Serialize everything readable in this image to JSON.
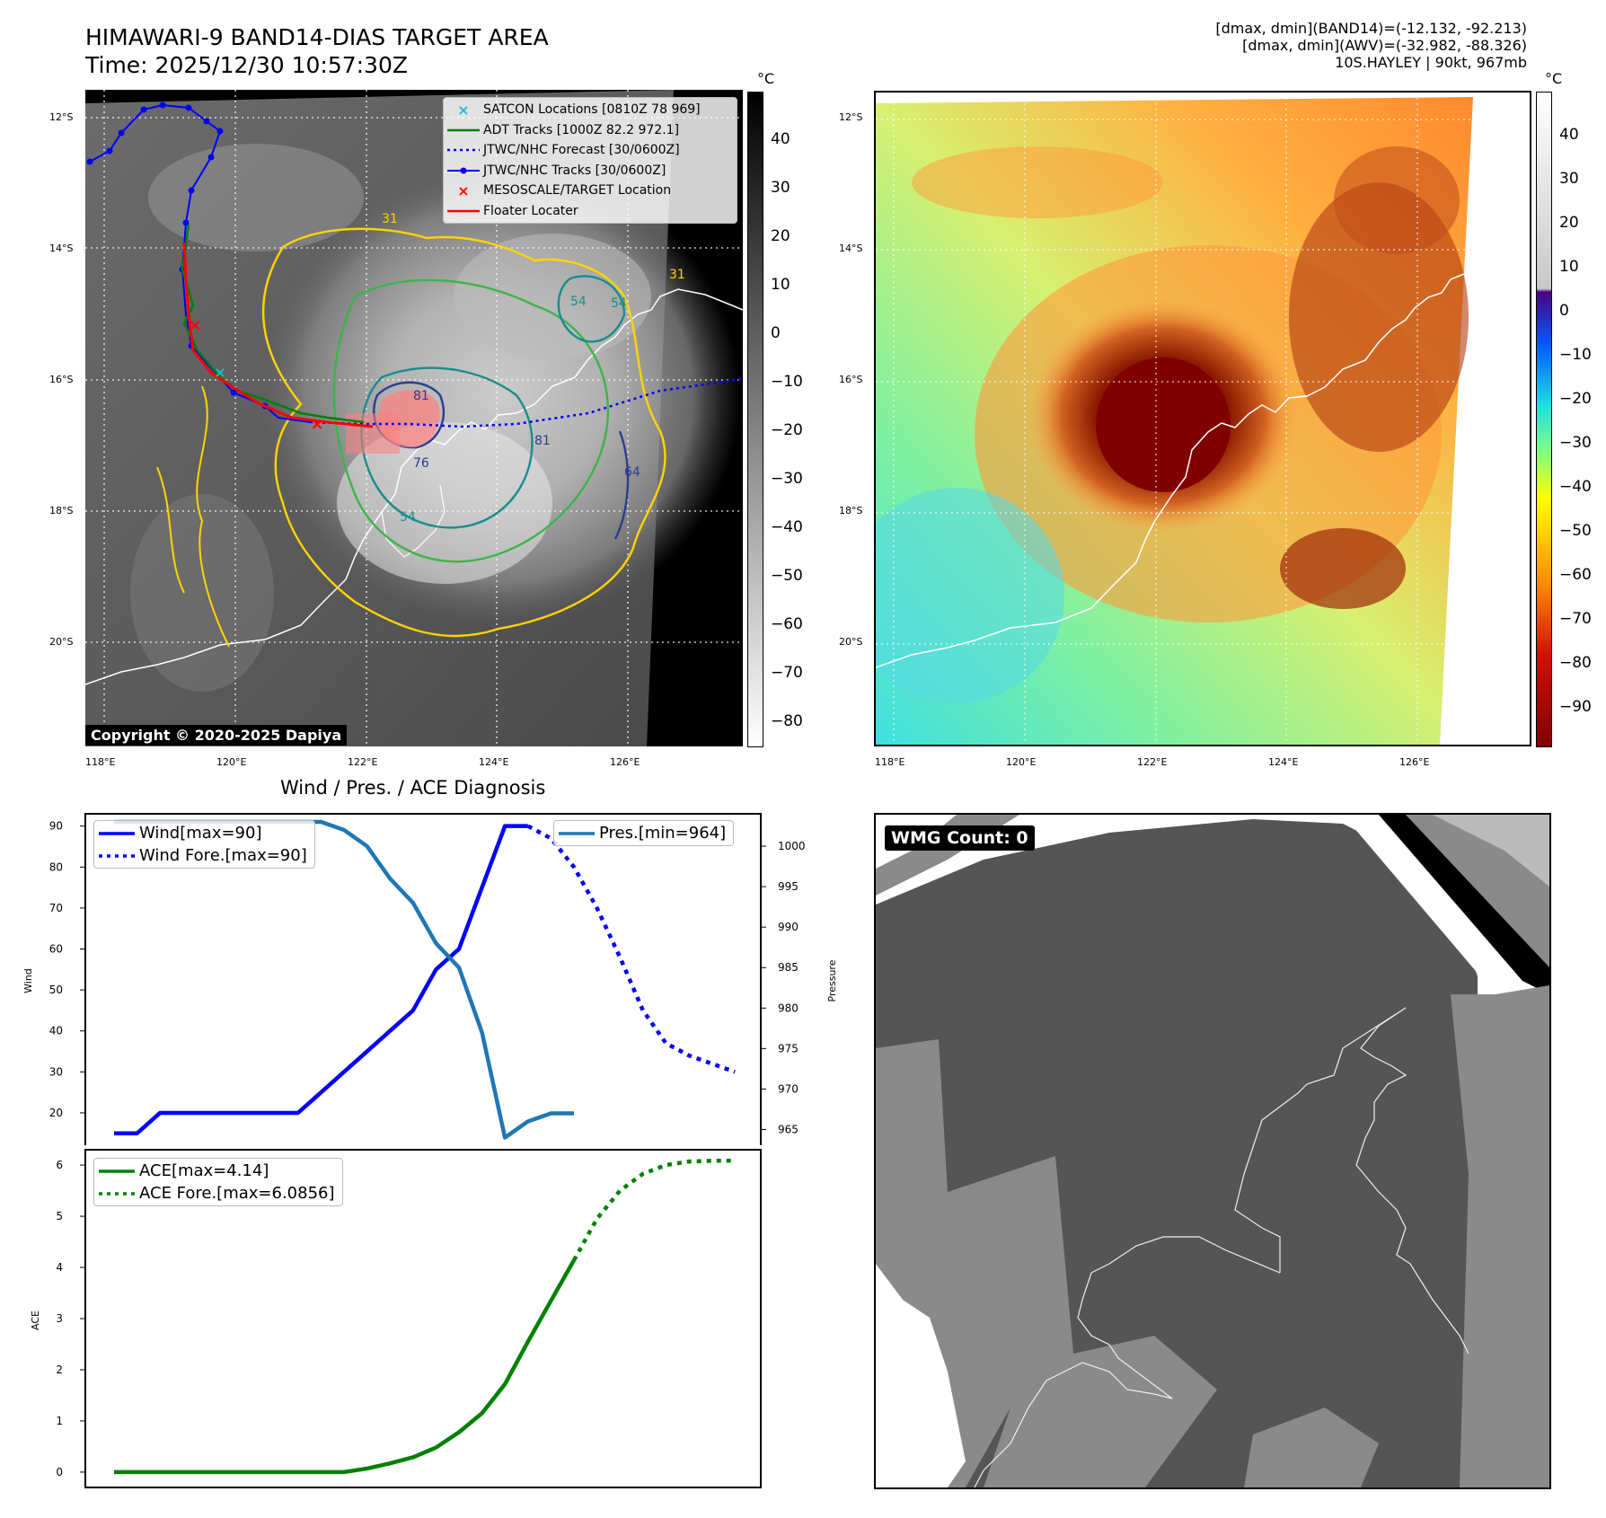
{
  "titles": {
    "main_line1": "HIMAWARI-9 BAND14-DIAS TARGET AREA",
    "main_line2": "Time: 2025/12/30 10:57:30Z",
    "stats_line1": "[dmax, dmin](BAND14)=(-12.132, -92.213)",
    "stats_line2": "[dmax, dmin](AWV)=(-32.982, -88.326)",
    "stats_line3": "10S.HAYLEY | 90kt, 967mb",
    "diagnosis": "Wind / Pres. / ACE Diagnosis",
    "copyright": "Copyright © 2020-2025 Dapiya",
    "wmg_count": "WMG Count: 0"
  },
  "map_axes": {
    "lat_labels": [
      "12°S",
      "14°S",
      "16°S",
      "18°S",
      "20°S"
    ],
    "lon_labels": [
      "118°E",
      "120°E",
      "122°E",
      "124°E",
      "126°E"
    ]
  },
  "colorbar_left": {
    "unit": "°C",
    "ticks": [
      "40",
      "30",
      "20",
      "10",
      "0",
      "−10",
      "−20",
      "−30",
      "−40",
      "−50",
      "−60",
      "−70",
      "−80"
    ]
  },
  "colorbar_right": {
    "unit": "°C",
    "ticks": [
      "40",
      "30",
      "20",
      "10",
      "0",
      "−10",
      "−20",
      "−30",
      "−40",
      "−50",
      "−60",
      "−70",
      "−80",
      "−90"
    ]
  },
  "contour_labels": [
    "31",
    "31",
    "54",
    "54",
    "54",
    "64",
    "76",
    "81",
    "81"
  ],
  "map_legend": [
    {
      "label": "SATCON Locations [0810Z 78 969]",
      "symbol": "×",
      "color": "#17becf",
      "style": "marker"
    },
    {
      "label": "ADT Tracks [1000Z 82.2 972.1]",
      "color": "#008000",
      "style": "solid"
    },
    {
      "label": "JTWC/NHC Forecast [30/0600Z]",
      "color": "#0000ff",
      "style": "dotted"
    },
    {
      "label": "JTWC/NHC Tracks [30/0600Z]",
      "color": "#0000ff",
      "style": "dotline"
    },
    {
      "label": "MESOSCALE/TARGET Location",
      "symbol": "×",
      "color": "#ff0000",
      "style": "marker"
    },
    {
      "label": "Floater Locater",
      "color": "#ff0000",
      "style": "solid"
    }
  ],
  "colors": {
    "wind": "#0000ff",
    "pressure": "#1f77b4",
    "ace": "#008000",
    "track_red": "#ff0000",
    "contour_yellow": "#ffd400",
    "contour_green": "#3cb44b",
    "contour_teal": "#1a8c8c",
    "contour_navy": "#2a3d8f"
  },
  "chart_data": [
    {
      "type": "line",
      "title": "Wind / Pres. / ACE Diagnosis",
      "ylabel": "Wind",
      "y2label": "Pressure",
      "ylim": [
        11,
        93
      ],
      "y2lim": [
        962.5,
        1004
      ],
      "yticks": [
        20,
        30,
        40,
        50,
        60,
        70,
        80,
        90
      ],
      "y2ticks": [
        965,
        970,
        975,
        980,
        985,
        990,
        995,
        1000
      ],
      "x": [
        0,
        1,
        2,
        3,
        4,
        5,
        6,
        7,
        8,
        9,
        10,
        11,
        12,
        13,
        14,
        15,
        16,
        17,
        18,
        19,
        20,
        21,
        22,
        23,
        24,
        25,
        26,
        27
      ],
      "series": [
        {
          "name": "Wind[max=90]",
          "axis": "left",
          "style": "solid",
          "x": [
            0,
            1,
            2,
            3,
            4,
            5,
            6,
            7,
            8,
            9,
            10,
            11,
            12,
            13,
            14,
            15,
            16,
            17,
            18
          ],
          "values": [
            15,
            15,
            20,
            20,
            20,
            20,
            20,
            20,
            20,
            25,
            30,
            35,
            40,
            45,
            55,
            60,
            75,
            90,
            90
          ]
        },
        {
          "name": "Wind Fore.[max=90]",
          "axis": "left",
          "style": "dotted",
          "x": [
            18,
            19,
            20,
            21,
            22,
            23,
            24,
            25,
            26,
            27
          ],
          "values": [
            90,
            87,
            80,
            70,
            58,
            45,
            37,
            34,
            32,
            30
          ]
        },
        {
          "name": "Pres.[min=964]",
          "axis": "right",
          "style": "solid",
          "x": [
            0,
            1,
            2,
            3,
            4,
            5,
            6,
            7,
            8,
            9,
            10,
            11,
            12,
            13,
            14,
            15,
            16,
            17,
            18,
            19,
            20
          ],
          "values": [
            1003,
            1003,
            1003,
            1003,
            1003,
            1003,
            1003,
            1003,
            1003,
            1003,
            1002,
            1000,
            996,
            993,
            988,
            985,
            977,
            964,
            966,
            967,
            967
          ]
        }
      ]
    },
    {
      "type": "line",
      "ylabel": "ACE",
      "ylim": [
        -0.3,
        6.3
      ],
      "yticks": [
        0,
        1,
        2,
        3,
        4,
        5,
        6
      ],
      "x": [
        0,
        1,
        2,
        3,
        4,
        5,
        6,
        7,
        8,
        9,
        10,
        11,
        12,
        13,
        14,
        15,
        16,
        17,
        18,
        19,
        20,
        21,
        22,
        23,
        24,
        25,
        26,
        27
      ],
      "series": [
        {
          "name": "ACE[max=4.14]",
          "style": "solid",
          "x": [
            0,
            1,
            2,
            3,
            4,
            5,
            6,
            7,
            8,
            9,
            10,
            11,
            12,
            13,
            14,
            15,
            16,
            17,
            18,
            19,
            20
          ],
          "values": [
            0,
            0,
            0,
            0,
            0,
            0,
            0,
            0,
            0,
            0,
            0,
            0.07,
            0.17,
            0.29,
            0.48,
            0.78,
            1.15,
            1.72,
            2.55,
            3.35,
            4.14
          ]
        },
        {
          "name": "ACE Fore.[max=6.0856]",
          "style": "dotted",
          "x": [
            20,
            21,
            22,
            23,
            24,
            25,
            26,
            27
          ],
          "values": [
            4.14,
            4.95,
            5.5,
            5.83,
            6.0,
            6.07,
            6.085,
            6.0856
          ]
        }
      ]
    }
  ]
}
